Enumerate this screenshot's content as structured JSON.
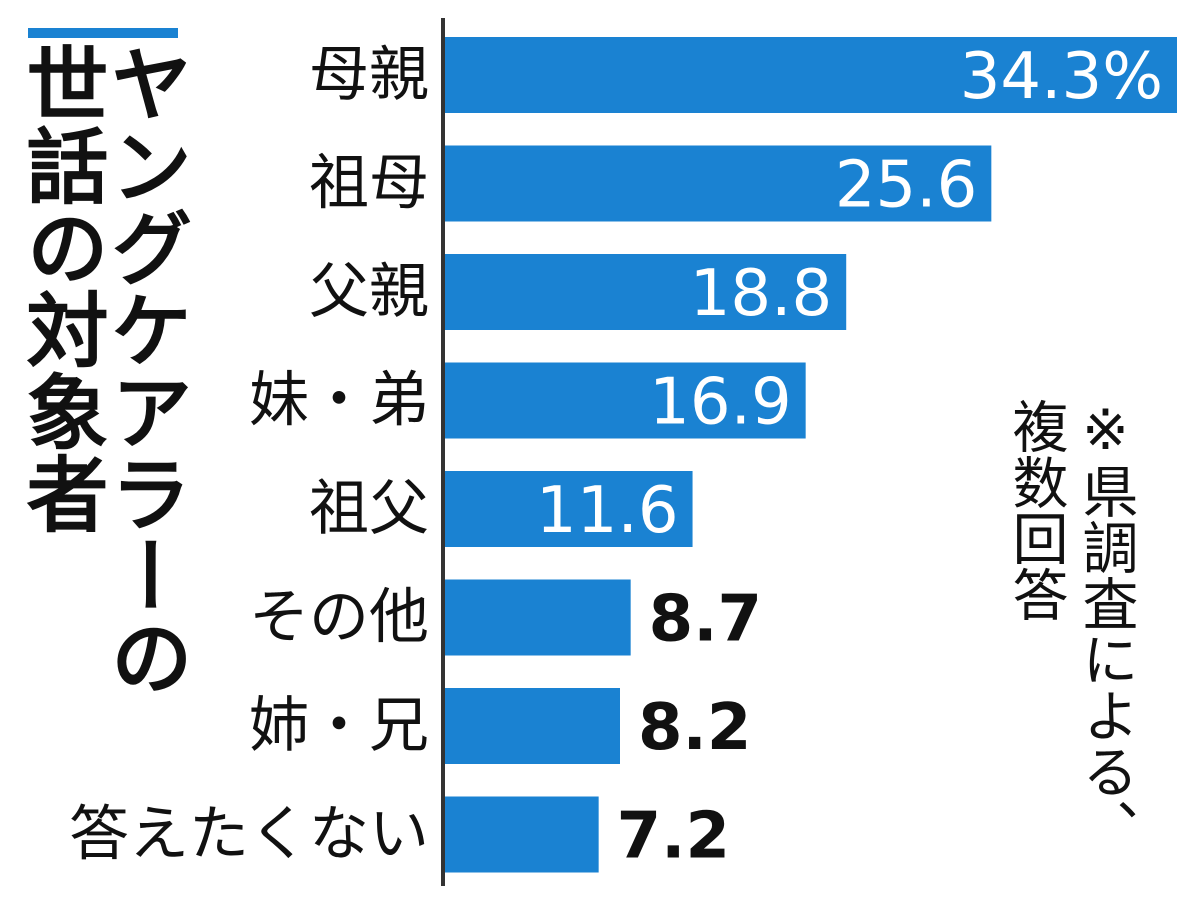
{
  "chart_data": {
    "type": "bar",
    "orientation": "horizontal",
    "title_lines": [
      "ヤングケアラーの",
      "世話の対象者"
    ],
    "categories": [
      "母親",
      "祖母",
      "父親",
      "妹・弟",
      "祖父",
      "その他",
      "姉・兄",
      "答えたくない"
    ],
    "values": [
      34.3,
      25.6,
      18.8,
      16.9,
      11.6,
      8.7,
      8.2,
      7.2
    ],
    "value_labels": [
      "34.3%",
      "25.6",
      "18.8",
      "16.9",
      "11.6",
      "8.7",
      "8.2",
      "7.2"
    ],
    "note": "※県調査による、\n複数回答",
    "xlim": [
      0,
      34.3
    ],
    "grid": false
  },
  "colors": {
    "bar": "#1a82d2",
    "accent": "#1a82d2",
    "axis": "#333333"
  }
}
